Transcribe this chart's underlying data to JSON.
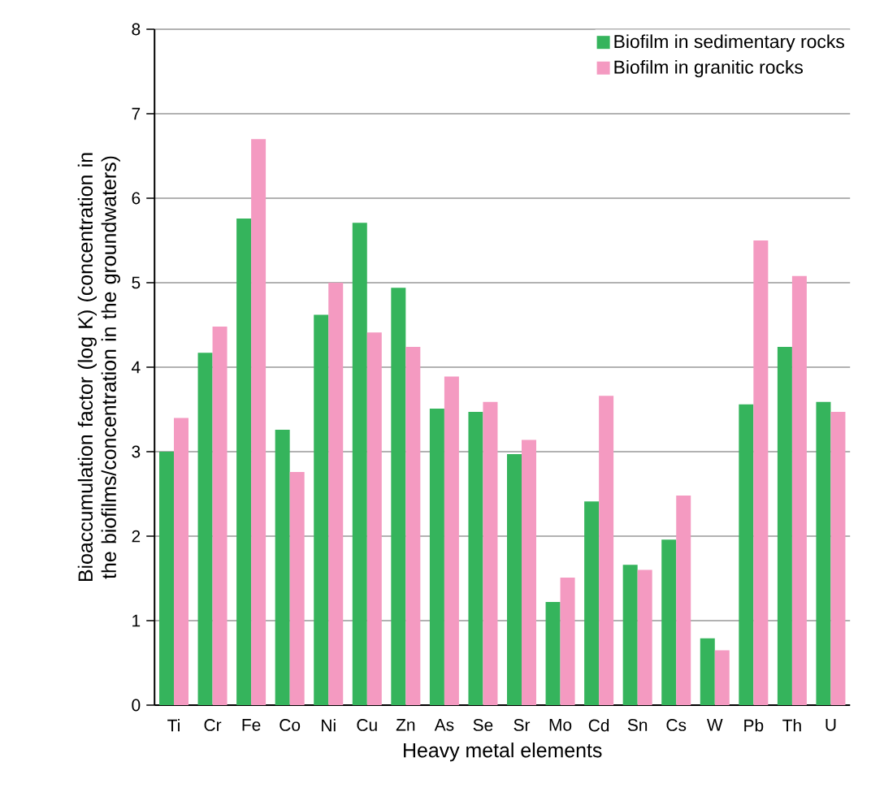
{
  "chart_data": {
    "type": "bar",
    "xlabel": "Heavy metal elements",
    "ylabel": "Bioaccumulation factor (log K) (concentration in the biofilms/concentration in the groundwaters)",
    "categories": [
      "Ti",
      "Cr",
      "Fe",
      "Co",
      "Ni",
      "Cu",
      "Zn",
      "As",
      "Se",
      "Sr",
      "Mo",
      "Cd",
      "Sn",
      "Cs",
      "W",
      "Pb",
      "Th",
      "U"
    ],
    "series": [
      {
        "name": "Biofilm in sedimentary rocks",
        "color": "#35b45c",
        "values": [
          3.0,
          4.17,
          5.76,
          3.26,
          4.62,
          5.71,
          4.94,
          3.51,
          3.47,
          2.97,
          1.22,
          2.41,
          1.66,
          1.96,
          0.79,
          3.56,
          4.24,
          3.59
        ]
      },
      {
        "name": "Biofilm in granitic rocks",
        "color": "#f49ac1",
        "values": [
          3.4,
          4.48,
          6.7,
          2.76,
          5.0,
          4.41,
          4.24,
          3.89,
          3.59,
          3.14,
          1.51,
          3.66,
          1.6,
          2.48,
          0.65,
          5.5,
          5.08,
          3.47
        ]
      }
    ],
    "ylim": [
      0,
      8
    ],
    "yticks": [
      0,
      1,
      2,
      3,
      4,
      5,
      6,
      7,
      8
    ],
    "grid": "y",
    "legend": "top right"
  }
}
